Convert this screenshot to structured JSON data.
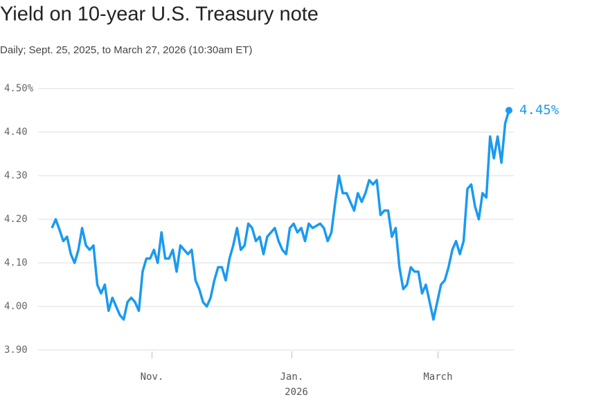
{
  "chart_data": {
    "type": "line",
    "title": "Yield on 10-year U.S. Treasury note",
    "subtitle": "Daily; Sept. 25, 2025, to March 27, 2026 (10:30am ET)",
    "color": "#1a9af0",
    "values": [
      4.18,
      4.2,
      4.176,
      4.15,
      4.16,
      4.12,
      4.1,
      4.13,
      4.18,
      4.14,
      4.13,
      4.14,
      4.05,
      4.03,
      4.05,
      3.99,
      4.02,
      4.0,
      3.98,
      3.97,
      4.01,
      4.02,
      4.01,
      3.99,
      4.08,
      4.11,
      4.11,
      4.13,
      4.1,
      4.17,
      4.11,
      4.11,
      4.13,
      4.08,
      4.14,
      4.13,
      4.12,
      4.13,
      4.06,
      4.04,
      4.01,
      4.0,
      4.02,
      4.06,
      4.09,
      4.09,
      4.06,
      4.11,
      4.14,
      4.18,
      4.13,
      4.14,
      4.19,
      4.18,
      4.15,
      4.16,
      4.12,
      4.16,
      4.17,
      4.18,
      4.15,
      4.13,
      4.12,
      4.18,
      4.19,
      4.17,
      4.18,
      4.15,
      4.19,
      4.18,
      4.185,
      4.19,
      4.18,
      4.15,
      4.17,
      4.24,
      4.3,
      4.26,
      4.26,
      4.24,
      4.22,
      4.26,
      4.24,
      4.26,
      4.29,
      4.28,
      4.29,
      4.21,
      4.22,
      4.22,
      4.16,
      4.18,
      4.09,
      4.04,
      4.05,
      4.09,
      4.08,
      4.08,
      4.03,
      4.05,
      4.01,
      3.97,
      4.01,
      4.05,
      4.06,
      4.09,
      4.13,
      4.15,
      4.12,
      4.15,
      4.27,
      4.28,
      4.23,
      4.2,
      4.26,
      4.25,
      4.39,
      4.34,
      4.39,
      4.33,
      4.42,
      4.45
    ],
    "end_label": "4.45%",
    "xlim": [
      0,
      121
    ],
    "xticks": [
      {
        "value": 26.5,
        "label": "Nov."
      },
      {
        "value": 63.5,
        "label": "Jan."
      },
      {
        "value": 102.2,
        "label": "March"
      }
    ],
    "x_year_label": "2026",
    "ylim": [
      3.9,
      4.5
    ],
    "yticks": [
      {
        "value": 3.9,
        "label": "3.90"
      },
      {
        "value": 4.0,
        "label": "4.00"
      },
      {
        "value": 4.1,
        "label": "4.10"
      },
      {
        "value": 4.2,
        "label": "4.20"
      },
      {
        "value": 4.3,
        "label": "4.30"
      },
      {
        "value": 4.4,
        "label": "4.40"
      },
      {
        "value": 4.5,
        "label": "4.50%"
      }
    ],
    "grid": true
  }
}
